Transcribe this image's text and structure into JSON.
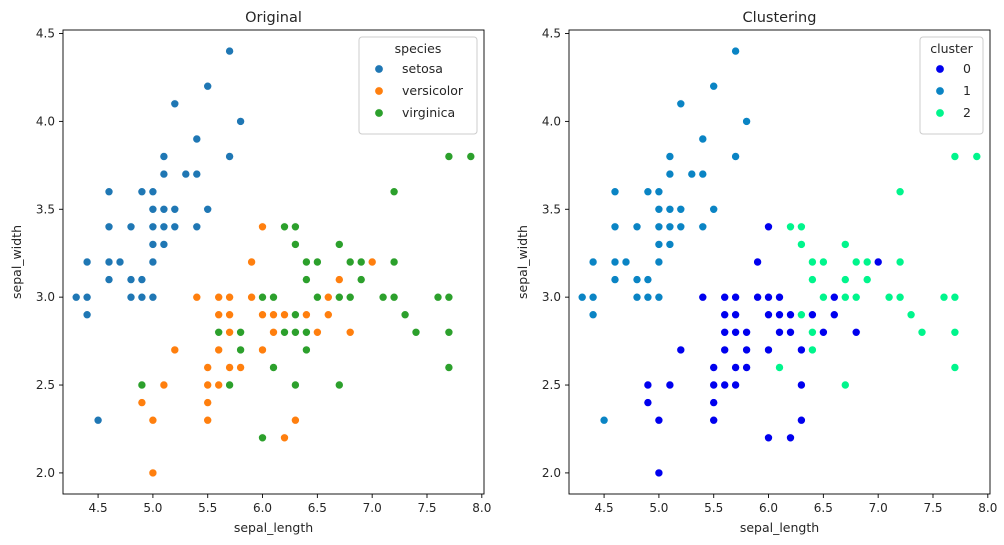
{
  "chart_data": [
    {
      "type": "scatter",
      "title": "Original",
      "xlabel": "sepal_length",
      "ylabel": "sepal_width",
      "xlim": [
        4.18,
        8.02
      ],
      "ylim": [
        1.88,
        4.52
      ],
      "xticks": [
        4.5,
        5.0,
        5.5,
        6.0,
        6.5,
        7.0,
        7.5,
        8.0
      ],
      "yticks": [
        2.0,
        2.5,
        3.0,
        3.5,
        4.0,
        4.5
      ],
      "legend": {
        "title": "species",
        "position": "upper right"
      },
      "series": [
        {
          "name": "setosa",
          "color": "#1f77b4",
          "points": [
            [
              4.3,
              3.0
            ],
            [
              4.4,
              3.0
            ],
            [
              4.4,
              3.2
            ],
            [
              4.4,
              2.9
            ],
            [
              4.5,
              2.3
            ],
            [
              4.6,
              3.1
            ],
            [
              4.6,
              3.4
            ],
            [
              4.6,
              3.6
            ],
            [
              4.6,
              3.2
            ],
            [
              4.7,
              3.2
            ],
            [
              4.8,
              3.4
            ],
            [
              4.8,
              3.0
            ],
            [
              4.8,
              3.1
            ],
            [
              4.9,
              3.0
            ],
            [
              4.9,
              3.1
            ],
            [
              4.9,
              3.6
            ],
            [
              5.0,
              3.6
            ],
            [
              5.0,
              3.4
            ],
            [
              5.0,
              3.0
            ],
            [
              5.0,
              3.3
            ],
            [
              5.0,
              3.5
            ],
            [
              5.0,
              3.2
            ],
            [
              5.1,
              3.5
            ],
            [
              5.1,
              3.8
            ],
            [
              5.1,
              3.7
            ],
            [
              5.1,
              3.3
            ],
            [
              5.1,
              3.4
            ],
            [
              5.2,
              3.5
            ],
            [
              5.2,
              3.4
            ],
            [
              5.2,
              4.1
            ],
            [
              5.3,
              3.7
            ],
            [
              5.4,
              3.9
            ],
            [
              5.4,
              3.7
            ],
            [
              5.4,
              3.4
            ],
            [
              5.5,
              4.2
            ],
            [
              5.5,
              3.5
            ],
            [
              5.7,
              4.4
            ],
            [
              5.7,
              3.8
            ],
            [
              5.8,
              4.0
            ]
          ]
        },
        {
          "name": "versicolor",
          "color": "#ff7f0e",
          "points": [
            [
              4.9,
              2.4
            ],
            [
              5.0,
              2.0
            ],
            [
              5.0,
              2.3
            ],
            [
              5.1,
              2.5
            ],
            [
              5.2,
              2.7
            ],
            [
              5.4,
              3.0
            ],
            [
              5.5,
              2.3
            ],
            [
              5.5,
              2.4
            ],
            [
              5.5,
              2.5
            ],
            [
              5.5,
              2.6
            ],
            [
              5.6,
              2.9
            ],
            [
              5.6,
              3.0
            ],
            [
              5.6,
              2.5
            ],
            [
              5.6,
              2.7
            ],
            [
              5.7,
              2.8
            ],
            [
              5.7,
              2.6
            ],
            [
              5.7,
              3.0
            ],
            [
              5.7,
              2.9
            ],
            [
              5.8,
              2.7
            ],
            [
              5.8,
              2.6
            ],
            [
              5.9,
              3.0
            ],
            [
              5.9,
              3.2
            ],
            [
              6.0,
              2.2
            ],
            [
              6.0,
              2.9
            ],
            [
              6.0,
              2.7
            ],
            [
              6.0,
              3.4
            ],
            [
              6.1,
              2.9
            ],
            [
              6.1,
              2.8
            ],
            [
              6.1,
              3.0
            ],
            [
              6.2,
              2.2
            ],
            [
              6.2,
              2.9
            ],
            [
              6.3,
              3.3
            ],
            [
              6.3,
              2.5
            ],
            [
              6.3,
              2.3
            ],
            [
              6.4,
              3.2
            ],
            [
              6.4,
              2.9
            ],
            [
              6.5,
              2.8
            ],
            [
              6.6,
              2.9
            ],
            [
              6.6,
              3.0
            ],
            [
              6.7,
              3.1
            ],
            [
              6.7,
              3.0
            ],
            [
              6.8,
              2.8
            ],
            [
              6.9,
              3.1
            ],
            [
              7.0,
              3.2
            ]
          ]
        },
        {
          "name": "virginica",
          "color": "#2ca02c",
          "points": [
            [
              4.9,
              2.5
            ],
            [
              5.6,
              2.8
            ],
            [
              5.7,
              2.5
            ],
            [
              5.8,
              2.7
            ],
            [
              5.8,
              2.8
            ],
            [
              6.0,
              2.2
            ],
            [
              6.0,
              3.0
            ],
            [
              6.1,
              3.0
            ],
            [
              6.1,
              2.6
            ],
            [
              6.2,
              2.8
            ],
            [
              6.2,
              3.4
            ],
            [
              6.3,
              3.3
            ],
            [
              6.3,
              2.9
            ],
            [
              6.3,
              2.5
            ],
            [
              6.3,
              2.8
            ],
            [
              6.3,
              3.4
            ],
            [
              6.4,
              2.7
            ],
            [
              6.4,
              3.2
            ],
            [
              6.4,
              2.8
            ],
            [
              6.4,
              3.1
            ],
            [
              6.5,
              3.0
            ],
            [
              6.5,
              3.2
            ],
            [
              6.7,
              2.5
            ],
            [
              6.7,
              3.3
            ],
            [
              6.7,
              3.0
            ],
            [
              6.8,
              3.0
            ],
            [
              6.8,
              3.2
            ],
            [
              6.9,
              3.2
            ],
            [
              6.9,
              3.1
            ],
            [
              7.1,
              3.0
            ],
            [
              7.2,
              3.6
            ],
            [
              7.2,
              3.2
            ],
            [
              7.2,
              3.0
            ],
            [
              7.3,
              2.9
            ],
            [
              7.4,
              2.8
            ],
            [
              7.6,
              3.0
            ],
            [
              7.7,
              3.8
            ],
            [
              7.7,
              2.6
            ],
            [
              7.7,
              2.8
            ],
            [
              7.7,
              3.0
            ],
            [
              7.9,
              3.8
            ]
          ]
        }
      ]
    },
    {
      "type": "scatter",
      "title": "Clustering",
      "xlabel": "sepal_length",
      "ylabel": "sepal_width",
      "xlim": [
        4.18,
        8.02
      ],
      "ylim": [
        1.88,
        4.52
      ],
      "xticks": [
        4.5,
        5.0,
        5.5,
        6.0,
        6.5,
        7.0,
        7.5,
        8.0
      ],
      "yticks": [
        2.0,
        2.5,
        3.0,
        3.5,
        4.0,
        4.5
      ],
      "legend": {
        "title": "cluster",
        "position": "upper right"
      },
      "series": [
        {
          "name": "0",
          "color": "#0000ee",
          "points": [
            [
              4.9,
              2.4
            ],
            [
              4.9,
              2.5
            ],
            [
              5.0,
              2.0
            ],
            [
              5.0,
              2.3
            ],
            [
              5.1,
              2.5
            ],
            [
              5.2,
              2.7
            ],
            [
              5.4,
              3.0
            ],
            [
              5.5,
              2.3
            ],
            [
              5.5,
              2.4
            ],
            [
              5.5,
              2.5
            ],
            [
              5.5,
              2.6
            ],
            [
              5.6,
              2.9
            ],
            [
              5.6,
              3.0
            ],
            [
              5.6,
              2.5
            ],
            [
              5.6,
              2.7
            ],
            [
              5.6,
              2.8
            ],
            [
              5.7,
              2.8
            ],
            [
              5.7,
              2.6
            ],
            [
              5.7,
              3.0
            ],
            [
              5.7,
              2.9
            ],
            [
              5.7,
              2.5
            ],
            [
              5.8,
              2.7
            ],
            [
              5.8,
              2.6
            ],
            [
              5.8,
              2.8
            ],
            [
              5.9,
              3.0
            ],
            [
              5.9,
              3.2
            ],
            [
              6.0,
              2.2
            ],
            [
              6.0,
              2.9
            ],
            [
              6.0,
              2.7
            ],
            [
              6.0,
              3.4
            ],
            [
              6.0,
              3.0
            ],
            [
              6.1,
              2.9
            ],
            [
              6.1,
              2.8
            ],
            [
              6.1,
              3.0
            ],
            [
              6.2,
              2.2
            ],
            [
              6.2,
              2.9
            ],
            [
              6.2,
              2.8
            ],
            [
              6.3,
              2.5
            ],
            [
              6.3,
              2.3
            ],
            [
              6.3,
              2.7
            ],
            [
              6.4,
              2.9
            ],
            [
              6.5,
              2.8
            ],
            [
              6.6,
              2.9
            ],
            [
              6.6,
              3.0
            ],
            [
              6.7,
              3.0
            ],
            [
              6.8,
              2.8
            ],
            [
              7.0,
              3.2
            ]
          ]
        },
        {
          "name": "1",
          "color": "#0a84c4",
          "points": [
            [
              4.3,
              3.0
            ],
            [
              4.4,
              3.0
            ],
            [
              4.4,
              3.2
            ],
            [
              4.4,
              2.9
            ],
            [
              4.5,
              2.3
            ],
            [
              4.6,
              3.1
            ],
            [
              4.6,
              3.4
            ],
            [
              4.6,
              3.6
            ],
            [
              4.6,
              3.2
            ],
            [
              4.7,
              3.2
            ],
            [
              4.8,
              3.4
            ],
            [
              4.8,
              3.0
            ],
            [
              4.8,
              3.1
            ],
            [
              4.9,
              3.0
            ],
            [
              4.9,
              3.1
            ],
            [
              4.9,
              3.6
            ],
            [
              5.0,
              3.6
            ],
            [
              5.0,
              3.4
            ],
            [
              5.0,
              3.0
            ],
            [
              5.0,
              3.3
            ],
            [
              5.0,
              3.5
            ],
            [
              5.0,
              3.2
            ],
            [
              5.1,
              3.5
            ],
            [
              5.1,
              3.8
            ],
            [
              5.1,
              3.7
            ],
            [
              5.1,
              3.3
            ],
            [
              5.1,
              3.4
            ],
            [
              5.2,
              3.5
            ],
            [
              5.2,
              3.4
            ],
            [
              5.2,
              4.1
            ],
            [
              5.3,
              3.7
            ],
            [
              5.4,
              3.9
            ],
            [
              5.4,
              3.7
            ],
            [
              5.4,
              3.4
            ],
            [
              5.5,
              4.2
            ],
            [
              5.5,
              3.5
            ],
            [
              5.7,
              4.4
            ],
            [
              5.7,
              3.8
            ],
            [
              5.8,
              4.0
            ]
          ]
        },
        {
          "name": "2",
          "color": "#00f58c",
          "points": [
            [
              6.1,
              2.6
            ],
            [
              6.2,
              3.4
            ],
            [
              6.3,
              3.3
            ],
            [
              6.3,
              2.9
            ],
            [
              6.3,
              3.4
            ],
            [
              6.4,
              3.2
            ],
            [
              6.4,
              3.1
            ],
            [
              6.4,
              2.8
            ],
            [
              6.4,
              2.7
            ],
            [
              6.5,
              3.0
            ],
            [
              6.5,
              3.2
            ],
            [
              6.7,
              2.5
            ],
            [
              6.7,
              3.3
            ],
            [
              6.7,
              3.1
            ],
            [
              6.7,
              3.0
            ],
            [
              6.8,
              3.0
            ],
            [
              6.8,
              3.2
            ],
            [
              6.9,
              3.2
            ],
            [
              6.9,
              3.1
            ],
            [
              7.1,
              3.0
            ],
            [
              7.2,
              3.6
            ],
            [
              7.2,
              3.2
            ],
            [
              7.2,
              3.0
            ],
            [
              7.3,
              2.9
            ],
            [
              7.4,
              2.8
            ],
            [
              7.6,
              3.0
            ],
            [
              7.7,
              3.8
            ],
            [
              7.7,
              2.6
            ],
            [
              7.7,
              2.8
            ],
            [
              7.7,
              3.0
            ],
            [
              7.9,
              3.8
            ]
          ]
        }
      ]
    }
  ]
}
